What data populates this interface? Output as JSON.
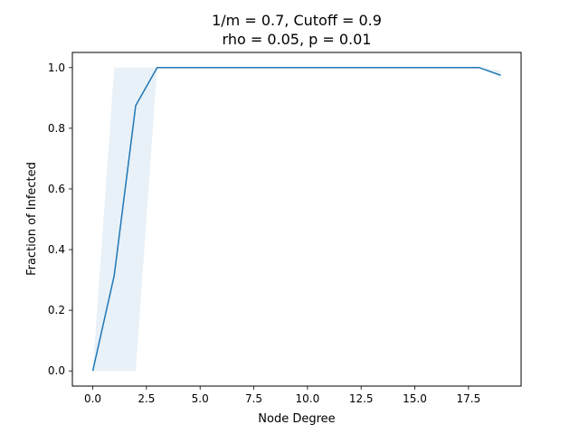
{
  "chart_data": {
    "type": "line",
    "title_line1": "1/m = 0.7, Cutoff = 0.9",
    "title_line2": "rho = 0.05, p = 0.01",
    "xlabel": "Node Degree",
    "ylabel": "Fraction of Infected",
    "xlim": [
      -0.95,
      19.95
    ],
    "ylim": [
      -0.05,
      1.05
    ],
    "xticks": [
      0,
      2.5,
      5,
      7.5,
      10,
      12.5,
      15,
      17.5
    ],
    "xtick_labels": [
      "0.0",
      "2.5",
      "5.0",
      "7.5",
      "10.0",
      "12.5",
      "15.0",
      "17.5"
    ],
    "yticks": [
      0,
      0.2,
      0.4,
      0.6,
      0.8,
      1.0
    ],
    "ytick_labels": [
      "0.0",
      "0.2",
      "0.4",
      "0.6",
      "0.8",
      "1.0"
    ],
    "series": [
      {
        "x": [
          0,
          1,
          2,
          3,
          4,
          5,
          6,
          7,
          8,
          9,
          10,
          11,
          12,
          13,
          14,
          15,
          16,
          17,
          18,
          19
        ],
        "y": [
          0.0,
          0.315,
          0.875,
          1.0,
          1.0,
          1.0,
          1.0,
          1.0,
          1.0,
          1.0,
          1.0,
          1.0,
          1.0,
          1.0,
          1.0,
          1.0,
          1.0,
          1.0,
          1.0,
          0.975
        ],
        "band_lower": [
          0.0,
          0.0,
          0.0,
          1.0,
          1.0,
          1.0,
          1.0,
          1.0,
          1.0,
          1.0,
          1.0,
          1.0,
          1.0,
          1.0,
          1.0,
          1.0,
          1.0,
          1.0,
          1.0,
          0.965
        ],
        "band_upper": [
          0.0,
          1.0,
          1.0,
          1.0,
          1.0,
          1.0,
          1.0,
          1.0,
          1.0,
          1.0,
          1.0,
          1.0,
          1.0,
          1.0,
          1.0,
          1.0,
          1.0,
          1.0,
          1.0,
          0.99
        ],
        "color": "#1f77b4"
      }
    ],
    "grid": false,
    "legend": "none"
  }
}
